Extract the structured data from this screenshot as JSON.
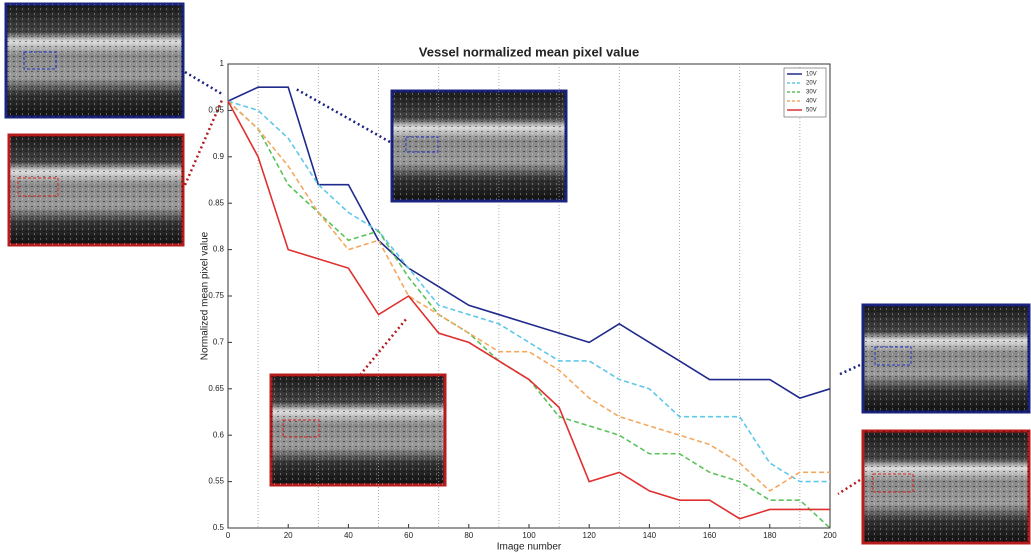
{
  "chart_data": {
    "type": "line",
    "title": "Vessel normalized mean pixel value",
    "x_label": "Image number",
    "y_label": "Normalized mean pixel value",
    "x": [
      0,
      10,
      20,
      30,
      40,
      50,
      60,
      70,
      80,
      90,
      100,
      110,
      120,
      130,
      140,
      150,
      160,
      170,
      180,
      190,
      200
    ],
    "series": [
      {
        "name": "10V",
        "color": "#1f2a8c",
        "dashed": false,
        "values": [
          0.96,
          0.975,
          0.975,
          0.87,
          0.87,
          0.81,
          0.78,
          0.76,
          0.74,
          0.73,
          0.72,
          0.71,
          0.7,
          0.72,
          0.7,
          0.68,
          0.66,
          0.66,
          0.66,
          0.64,
          0.65
        ]
      },
      {
        "name": "20V",
        "color": "#5fc8e8",
        "dashed": true,
        "values": [
          0.96,
          0.95,
          0.92,
          0.87,
          0.84,
          0.82,
          0.78,
          0.74,
          0.73,
          0.72,
          0.7,
          0.68,
          0.68,
          0.66,
          0.65,
          0.62,
          0.62,
          0.62,
          0.57,
          0.55,
          0.55
        ]
      },
      {
        "name": "30V",
        "color": "#5cc25c",
        "dashed": true,
        "values": [
          0.96,
          0.93,
          0.87,
          0.84,
          0.81,
          0.82,
          0.77,
          0.73,
          0.71,
          0.68,
          0.66,
          0.62,
          0.61,
          0.6,
          0.58,
          0.58,
          0.56,
          0.55,
          0.53,
          0.53,
          0.5
        ]
      },
      {
        "name": "40V",
        "color": "#f4a860",
        "dashed": true,
        "values": [
          0.96,
          0.93,
          0.89,
          0.84,
          0.8,
          0.81,
          0.75,
          0.73,
          0.71,
          0.69,
          0.69,
          0.67,
          0.64,
          0.62,
          0.61,
          0.6,
          0.59,
          0.57,
          0.54,
          0.56,
          0.56
        ]
      },
      {
        "name": "50V",
        "color": "#e03030",
        "dashed": false,
        "values": [
          0.96,
          0.9,
          0.8,
          0.79,
          0.78,
          0.73,
          0.75,
          0.71,
          0.7,
          0.68,
          0.66,
          0.63,
          0.55,
          0.56,
          0.54,
          0.53,
          0.53,
          0.51,
          0.52,
          0.52,
          0.52
        ]
      }
    ],
    "xlim": [
      0,
      200
    ],
    "ylim": [
      0.5,
      1
    ],
    "xticks": [
      0,
      20,
      40,
      60,
      80,
      100,
      120,
      140,
      160,
      180,
      200
    ],
    "yticks": [
      0.5,
      0.55,
      0.6,
      0.65,
      0.7,
      0.75,
      0.8,
      0.85,
      0.9,
      0.95,
      1
    ],
    "marker_lines": [
      10,
      30,
      50,
      70,
      90,
      110,
      130,
      150,
      170,
      190
    ],
    "legend": "upper right"
  }
}
